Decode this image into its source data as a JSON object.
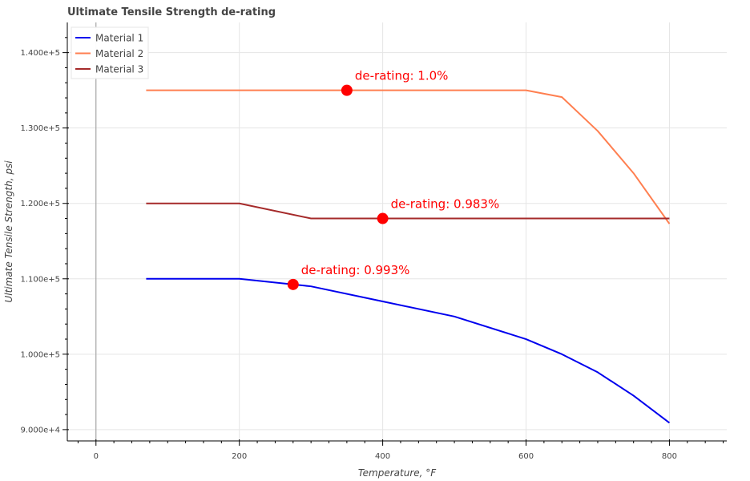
{
  "chart_data": {
    "type": "line",
    "title": "Ultimate Tensile Strength de-rating",
    "xlabel": "Temperature, °F",
    "ylabel": "Ultimate Tensile Strength, psi",
    "xlim": [
      -40,
      880
    ],
    "ylim": [
      88500,
      144000
    ],
    "xticks": [
      0,
      200,
      400,
      600,
      800
    ],
    "xtick_labels": [
      "0",
      "200",
      "400",
      "600",
      "800"
    ],
    "xminor": [
      -25,
      25,
      50,
      75,
      100,
      125,
      150,
      175,
      225,
      250,
      275,
      300,
      325,
      350,
      375,
      425,
      450,
      475,
      500,
      525,
      550,
      575,
      625,
      650,
      675,
      700,
      725,
      750,
      775,
      825,
      850,
      875
    ],
    "yticks": [
      90000,
      100000,
      110000,
      120000,
      130000,
      140000
    ],
    "ytick_labels": [
      "9.000e+4",
      "1.000e+5",
      "1.100e+5",
      "1.200e+5",
      "1.300e+5",
      "1.400e+5"
    ],
    "grid": true,
    "legend_position": "top-left",
    "series": [
      {
        "name": "Material 1",
        "color": "#0000ee",
        "x": [
          70,
          200,
          300,
          400,
          500,
          600,
          650,
          700,
          750,
          800
        ],
        "y": [
          110000,
          110000,
          109000,
          107000,
          105000,
          102000,
          100000,
          97600,
          94500,
          90900
        ]
      },
      {
        "name": "Material 2",
        "color": "#ff7f50",
        "x": [
          70,
          200,
          300,
          400,
          500,
          600,
          650,
          700,
          750,
          800
        ],
        "y": [
          135000,
          135000,
          135000,
          135000,
          135000,
          135000,
          134100,
          129600,
          124000,
          117300
        ]
      },
      {
        "name": "Material 3",
        "color": "#a52a2a",
        "x": [
          70,
          200,
          300,
          400,
          500,
          600,
          700,
          800
        ],
        "y": [
          120000,
          120000,
          118000,
          118000,
          118000,
          118000,
          118000,
          118000
        ]
      }
    ],
    "markers": [
      {
        "x": 350,
        "y": 135000,
        "label": "de-rating: 1.0%",
        "color": "#ff0000"
      },
      {
        "x": 400,
        "y": 118000,
        "label": "de-rating: 0.983%",
        "color": "#ff0000"
      },
      {
        "x": 275,
        "y": 109250,
        "label": "de-rating: 0.993%",
        "color": "#ff0000"
      }
    ]
  }
}
